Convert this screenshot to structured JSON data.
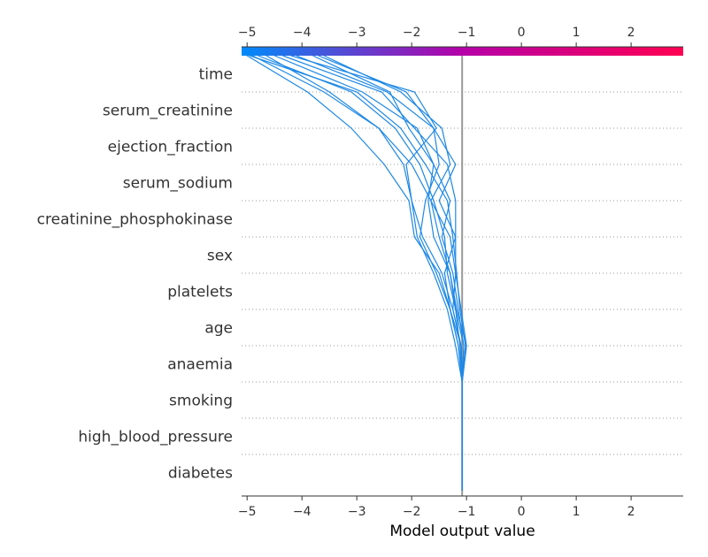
{
  "chart_data": {
    "type": "line",
    "subtype": "shap-decision-plot",
    "xlabel": "Model output value",
    "xlim": [
      -5.1,
      2.95
    ],
    "x_ticks": [
      -5,
      -4,
      -3,
      -2,
      -1,
      0,
      1,
      2
    ],
    "x_tick_labels": [
      "−5",
      "−4",
      "−3",
      "−2",
      "−1",
      "0",
      "1",
      "2"
    ],
    "base_value": -1.08,
    "colorbar": {
      "low_color": "#008bfb",
      "mid_color": "#b500a8",
      "high_color": "#ff0052",
      "position": "top"
    },
    "line_color": "#1e88e5",
    "base_line_color": "#999999",
    "features": [
      "time",
      "serum_creatinine",
      "ejection_fraction",
      "serum_sodium",
      "creatinine_phosphokinase",
      "sex",
      "platelets",
      "age",
      "anaemia",
      "smoking",
      "high_blood_pressure",
      "diabetes"
    ],
    "series": [
      {
        "values": [
          -1.08,
          -1.08,
          -1.08,
          -1.08,
          -1.02,
          -1.12,
          -1.18,
          -1.25,
          -1.35,
          -1.75,
          -2.2,
          -3.0,
          -4.95
        ]
      },
      {
        "values": [
          -1.08,
          -1.08,
          -1.08,
          -1.08,
          -1.0,
          -1.18,
          -1.3,
          -1.5,
          -1.65,
          -2.0,
          -2.6,
          -3.6,
          -4.9
        ]
      },
      {
        "values": [
          -1.08,
          -1.08,
          -1.08,
          -1.08,
          -1.05,
          -1.2,
          -1.35,
          -1.4,
          -1.6,
          -1.85,
          -2.3,
          -3.1,
          -4.8
        ]
      },
      {
        "values": [
          -1.08,
          -1.08,
          -1.08,
          -1.08,
          -1.1,
          -1.25,
          -1.45,
          -1.8,
          -2.0,
          -2.15,
          -2.6,
          -3.5,
          -4.65
        ]
      },
      {
        "values": [
          -1.08,
          -1.08,
          -1.08,
          -1.08,
          -1.15,
          -1.3,
          -1.5,
          -1.95,
          -2.05,
          -2.5,
          -3.1,
          -3.9,
          -5.0
        ]
      },
      {
        "values": [
          -1.08,
          -1.08,
          -1.08,
          -1.08,
          -1.12,
          -1.2,
          -1.3,
          -1.6,
          -1.7,
          -1.6,
          -1.9,
          -2.9,
          -4.5
        ]
      },
      {
        "values": [
          -1.08,
          -1.08,
          -1.08,
          -1.08,
          -1.1,
          -1.3,
          -1.4,
          -1.2,
          -1.2,
          -1.35,
          -1.95,
          -2.55,
          -4.35
        ]
      },
      {
        "values": [
          -1.08,
          -1.08,
          -1.08,
          -1.08,
          -1.0,
          -1.1,
          -1.2,
          -1.2,
          -1.5,
          -1.2,
          -1.6,
          -2.45,
          -4.1
        ]
      },
      {
        "values": [
          -1.08,
          -1.08,
          -1.08,
          -1.08,
          -1.05,
          -1.15,
          -1.25,
          -1.45,
          -1.3,
          -1.6,
          -2.05,
          -2.4,
          -3.8
        ]
      },
      {
        "values": [
          -1.08,
          -1.08,
          -1.08,
          -1.08,
          -1.15,
          -1.3,
          -1.55,
          -1.85,
          -1.75,
          -1.5,
          -1.6,
          -2.1,
          -3.7
        ]
      },
      {
        "values": [
          -1.08,
          -1.08,
          -1.08,
          -1.08,
          -1.1,
          -1.25,
          -1.2,
          -1.3,
          -1.65,
          -1.3,
          -1.45,
          -2.2,
          -3.6
        ]
      },
      {
        "values": [
          -1.08,
          -1.08,
          -1.08,
          -1.08,
          -1.2,
          -1.35,
          -1.6,
          -1.9,
          -2.0,
          -2.1,
          -1.55,
          -1.95,
          -4.2
        ]
      }
    ]
  }
}
